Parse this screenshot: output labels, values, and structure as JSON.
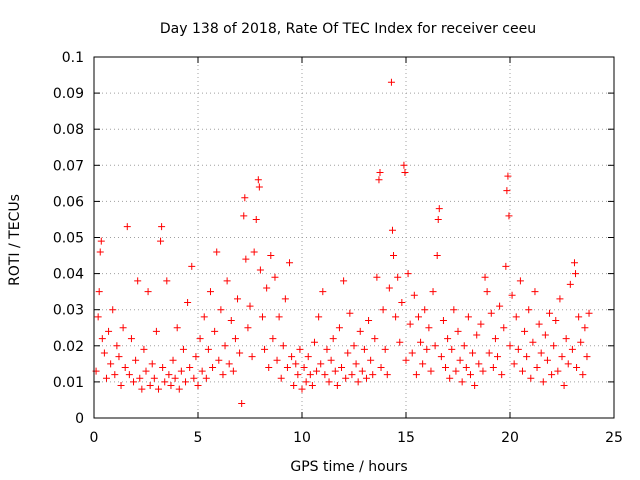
{
  "chart_data": {
    "type": "scatter",
    "title": "Day 138 of 2018, Rate Of TEC Index for receiver ceeu",
    "xlabel": "GPS time / hours",
    "ylabel": "ROTI / TECUs",
    "xlim": [
      0,
      25
    ],
    "ylim": [
      0,
      0.1
    ],
    "x_ticks": [
      "0",
      "5",
      "10",
      "15",
      "20",
      "25"
    ],
    "y_ticks": [
      "0",
      "0.01",
      "0.02",
      "0.03",
      "0.04",
      "0.05",
      "0.06",
      "0.07",
      "0.08",
      "0.09",
      "0.1"
    ],
    "grid": true,
    "marker": "+",
    "color": "#ff0000",
    "series": [
      {
        "name": "ROTI",
        "points": [
          [
            0.1,
            0.013
          ],
          [
            0.2,
            0.028
          ],
          [
            0.25,
            0.035
          ],
          [
            0.3,
            0.046
          ],
          [
            0.35,
            0.049
          ],
          [
            0.4,
            0.022
          ],
          [
            0.5,
            0.018
          ],
          [
            0.6,
            0.011
          ],
          [
            0.7,
            0.024
          ],
          [
            0.8,
            0.015
          ],
          [
            0.9,
            0.03
          ],
          [
            1.0,
            0.012
          ],
          [
            1.1,
            0.02
          ],
          [
            1.2,
            0.017
          ],
          [
            1.3,
            0.009
          ],
          [
            1.4,
            0.025
          ],
          [
            1.5,
            0.014
          ],
          [
            1.6,
            0.053
          ],
          [
            1.7,
            0.012
          ],
          [
            1.8,
            0.022
          ],
          [
            1.9,
            0.01
          ],
          [
            2.0,
            0.016
          ],
          [
            2.1,
            0.038
          ],
          [
            2.2,
            0.011
          ],
          [
            2.3,
            0.008
          ],
          [
            2.4,
            0.019
          ],
          [
            2.5,
            0.013
          ],
          [
            2.6,
            0.035
          ],
          [
            2.7,
            0.009
          ],
          [
            2.8,
            0.015
          ],
          [
            2.9,
            0.011
          ],
          [
            3.0,
            0.024
          ],
          [
            3.1,
            0.008
          ],
          [
            3.2,
            0.049
          ],
          [
            3.25,
            0.053
          ],
          [
            3.3,
            0.014
          ],
          [
            3.4,
            0.01
          ],
          [
            3.5,
            0.038
          ],
          [
            3.6,
            0.012
          ],
          [
            3.7,
            0.009
          ],
          [
            3.8,
            0.016
          ],
          [
            3.9,
            0.011
          ],
          [
            4.0,
            0.025
          ],
          [
            4.1,
            0.008
          ],
          [
            4.2,
            0.013
          ],
          [
            4.3,
            0.019
          ],
          [
            4.4,
            0.01
          ],
          [
            4.5,
            0.032
          ],
          [
            4.6,
            0.014
          ],
          [
            4.7,
            0.042
          ],
          [
            4.8,
            0.011
          ],
          [
            4.9,
            0.017
          ],
          [
            5.0,
            0.009
          ],
          [
            5.1,
            0.022
          ],
          [
            5.2,
            0.013
          ],
          [
            5.3,
            0.028
          ],
          [
            5.4,
            0.011
          ],
          [
            5.5,
            0.019
          ],
          [
            5.6,
            0.035
          ],
          [
            5.7,
            0.014
          ],
          [
            5.8,
            0.024
          ],
          [
            5.9,
            0.046
          ],
          [
            6.0,
            0.016
          ],
          [
            6.1,
            0.03
          ],
          [
            6.2,
            0.012
          ],
          [
            6.3,
            0.02
          ],
          [
            6.4,
            0.038
          ],
          [
            6.5,
            0.015
          ],
          [
            6.6,
            0.027
          ],
          [
            6.7,
            0.013
          ],
          [
            6.8,
            0.022
          ],
          [
            6.9,
            0.033
          ],
          [
            7.0,
            0.018
          ],
          [
            7.1,
            0.004
          ],
          [
            7.2,
            0.056
          ],
          [
            7.25,
            0.061
          ],
          [
            7.3,
            0.044
          ],
          [
            7.4,
            0.025
          ],
          [
            7.5,
            0.031
          ],
          [
            7.6,
            0.017
          ],
          [
            7.7,
            0.046
          ],
          [
            7.8,
            0.055
          ],
          [
            7.9,
            0.066
          ],
          [
            7.95,
            0.064
          ],
          [
            8.0,
            0.041
          ],
          [
            8.1,
            0.028
          ],
          [
            8.2,
            0.019
          ],
          [
            8.3,
            0.036
          ],
          [
            8.4,
            0.014
          ],
          [
            8.5,
            0.045
          ],
          [
            8.6,
            0.022
          ],
          [
            8.7,
            0.039
          ],
          [
            8.8,
            0.016
          ],
          [
            8.9,
            0.028
          ],
          [
            9.0,
            0.011
          ],
          [
            9.1,
            0.02
          ],
          [
            9.2,
            0.033
          ],
          [
            9.3,
            0.014
          ],
          [
            9.4,
            0.043
          ],
          [
            9.5,
            0.017
          ],
          [
            9.6,
            0.009
          ],
          [
            9.7,
            0.015
          ],
          [
            9.8,
            0.012
          ],
          [
            9.9,
            0.019
          ],
          [
            10.0,
            0.008
          ],
          [
            10.1,
            0.014
          ],
          [
            10.2,
            0.01
          ],
          [
            10.3,
            0.017
          ],
          [
            10.4,
            0.012
          ],
          [
            10.5,
            0.009
          ],
          [
            10.6,
            0.021
          ],
          [
            10.7,
            0.013
          ],
          [
            10.8,
            0.028
          ],
          [
            10.9,
            0.015
          ],
          [
            11.0,
            0.035
          ],
          [
            11.1,
            0.012
          ],
          [
            11.2,
            0.019
          ],
          [
            11.3,
            0.01
          ],
          [
            11.4,
            0.016
          ],
          [
            11.5,
            0.022
          ],
          [
            11.6,
            0.013
          ],
          [
            11.7,
            0.009
          ],
          [
            11.8,
            0.025
          ],
          [
            11.9,
            0.014
          ],
          [
            12.0,
            0.038
          ],
          [
            12.1,
            0.011
          ],
          [
            12.2,
            0.018
          ],
          [
            12.3,
            0.029
          ],
          [
            12.4,
            0.012
          ],
          [
            12.5,
            0.02
          ],
          [
            12.6,
            0.015
          ],
          [
            12.7,
            0.01
          ],
          [
            12.8,
            0.024
          ],
          [
            12.9,
            0.013
          ],
          [
            13.0,
            0.019
          ],
          [
            13.1,
            0.011
          ],
          [
            13.2,
            0.027
          ],
          [
            13.3,
            0.016
          ],
          [
            13.4,
            0.012
          ],
          [
            13.5,
            0.022
          ],
          [
            13.6,
            0.039
          ],
          [
            13.7,
            0.066
          ],
          [
            13.75,
            0.068
          ],
          [
            13.8,
            0.014
          ],
          [
            13.9,
            0.03
          ],
          [
            14.0,
            0.019
          ],
          [
            14.1,
            0.012
          ],
          [
            14.2,
            0.036
          ],
          [
            14.3,
            0.093
          ],
          [
            14.35,
            0.052
          ],
          [
            14.4,
            0.045
          ],
          [
            14.5,
            0.028
          ],
          [
            14.6,
            0.039
          ],
          [
            14.7,
            0.021
          ],
          [
            14.8,
            0.032
          ],
          [
            14.9,
            0.07
          ],
          [
            14.95,
            0.068
          ],
          [
            15.0,
            0.016
          ],
          [
            15.1,
            0.04
          ],
          [
            15.2,
            0.026
          ],
          [
            15.3,
            0.018
          ],
          [
            15.4,
            0.034
          ],
          [
            15.5,
            0.012
          ],
          [
            15.6,
            0.028
          ],
          [
            15.7,
            0.021
          ],
          [
            15.8,
            0.015
          ],
          [
            15.9,
            0.03
          ],
          [
            16.0,
            0.019
          ],
          [
            16.1,
            0.025
          ],
          [
            16.2,
            0.013
          ],
          [
            16.3,
            0.035
          ],
          [
            16.4,
            0.02
          ],
          [
            16.5,
            0.045
          ],
          [
            16.55,
            0.055
          ],
          [
            16.6,
            0.058
          ],
          [
            16.7,
            0.017
          ],
          [
            16.8,
            0.027
          ],
          [
            16.9,
            0.014
          ],
          [
            17.0,
            0.022
          ],
          [
            17.1,
            0.011
          ],
          [
            17.2,
            0.019
          ],
          [
            17.3,
            0.03
          ],
          [
            17.4,
            0.013
          ],
          [
            17.5,
            0.024
          ],
          [
            17.6,
            0.016
          ],
          [
            17.7,
            0.01
          ],
          [
            17.8,
            0.02
          ],
          [
            17.9,
            0.014
          ],
          [
            18.0,
            0.028
          ],
          [
            18.1,
            0.012
          ],
          [
            18.2,
            0.018
          ],
          [
            18.3,
            0.009
          ],
          [
            18.4,
            0.023
          ],
          [
            18.5,
            0.015
          ],
          [
            18.6,
            0.026
          ],
          [
            18.7,
            0.013
          ],
          [
            18.8,
            0.039
          ],
          [
            18.9,
            0.035
          ],
          [
            19.0,
            0.018
          ],
          [
            19.1,
            0.029
          ],
          [
            19.2,
            0.014
          ],
          [
            19.3,
            0.022
          ],
          [
            19.4,
            0.017
          ],
          [
            19.5,
            0.031
          ],
          [
            19.6,
            0.012
          ],
          [
            19.7,
            0.025
          ],
          [
            19.8,
            0.042
          ],
          [
            19.85,
            0.063
          ],
          [
            19.9,
            0.067
          ],
          [
            19.95,
            0.056
          ],
          [
            20.0,
            0.02
          ],
          [
            20.1,
            0.034
          ],
          [
            20.2,
            0.015
          ],
          [
            20.3,
            0.028
          ],
          [
            20.4,
            0.019
          ],
          [
            20.5,
            0.038
          ],
          [
            20.6,
            0.013
          ],
          [
            20.7,
            0.024
          ],
          [
            20.8,
            0.017
          ],
          [
            20.9,
            0.03
          ],
          [
            21.0,
            0.011
          ],
          [
            21.1,
            0.021
          ],
          [
            21.2,
            0.035
          ],
          [
            21.3,
            0.014
          ],
          [
            21.4,
            0.026
          ],
          [
            21.5,
            0.018
          ],
          [
            21.6,
            0.01
          ],
          [
            21.7,
            0.023
          ],
          [
            21.8,
            0.016
          ],
          [
            21.9,
            0.029
          ],
          [
            22.0,
            0.012
          ],
          [
            22.1,
            0.02
          ],
          [
            22.2,
            0.027
          ],
          [
            22.3,
            0.013
          ],
          [
            22.4,
            0.033
          ],
          [
            22.5,
            0.017
          ],
          [
            22.6,
            0.009
          ],
          [
            22.7,
            0.022
          ],
          [
            22.8,
            0.015
          ],
          [
            22.9,
            0.037
          ],
          [
            23.0,
            0.019
          ],
          [
            23.1,
            0.043
          ],
          [
            23.15,
            0.04
          ],
          [
            23.2,
            0.014
          ],
          [
            23.3,
            0.028
          ],
          [
            23.4,
            0.021
          ],
          [
            23.5,
            0.012
          ],
          [
            23.6,
            0.025
          ],
          [
            23.7,
            0.017
          ],
          [
            23.8,
            0.029
          ]
        ]
      }
    ]
  }
}
